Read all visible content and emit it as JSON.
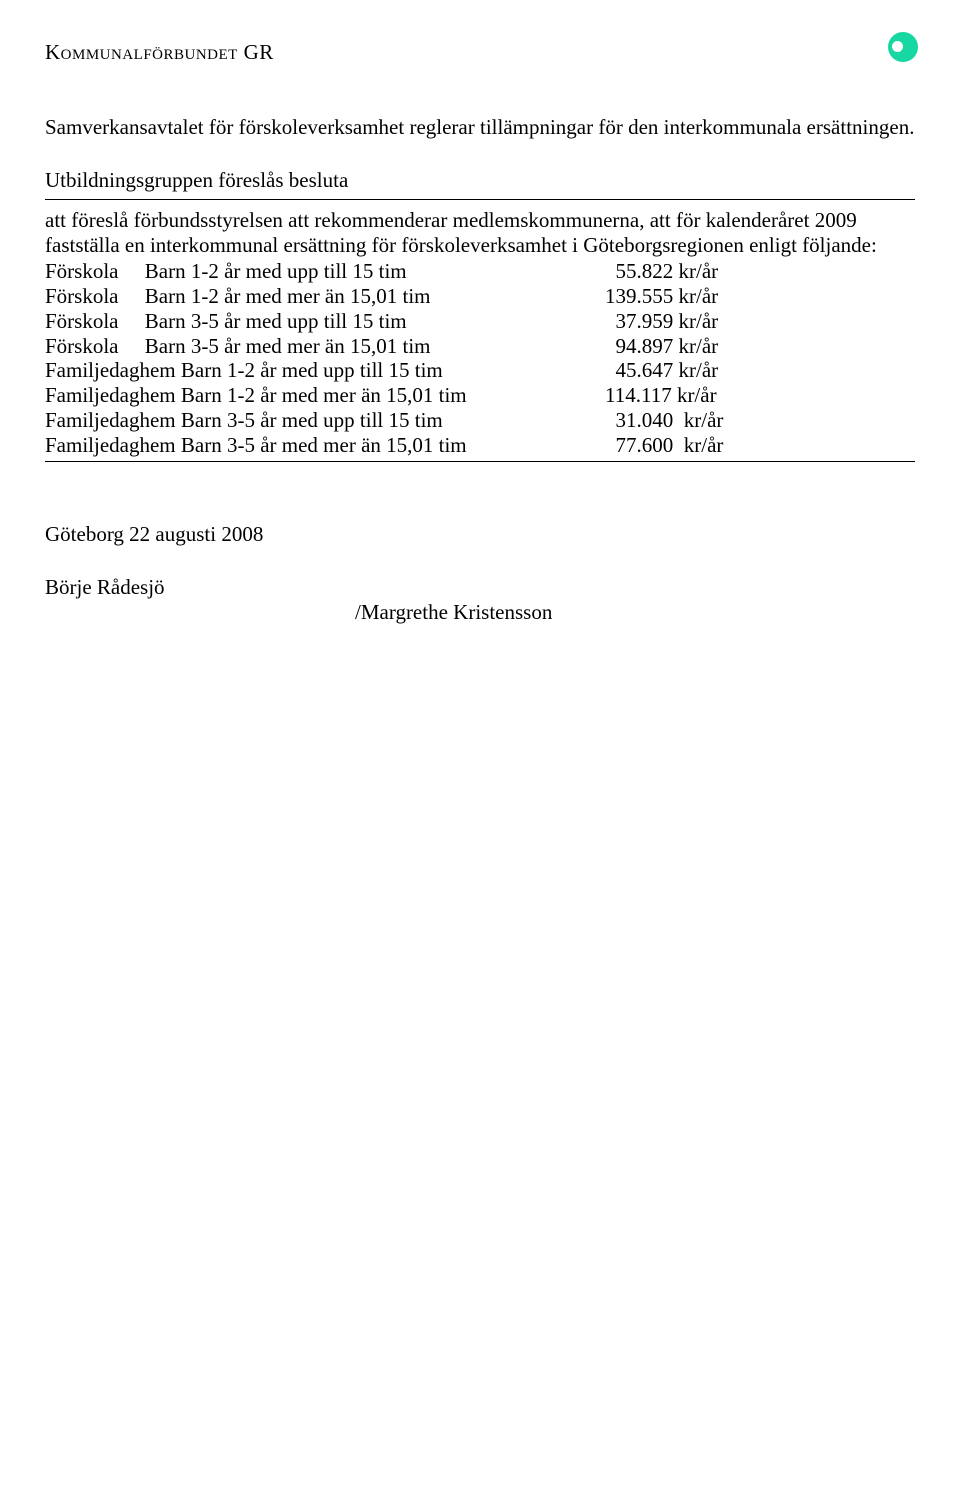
{
  "header": {
    "org_name": "Kommunalförbundet GR"
  },
  "intro_paragraph": "Samverkansavtalet för förskoleverksamhet reglerar tillämpningar för den interkommunala ersättningen.",
  "decision": {
    "title": "Utbildningsgruppen föreslås besluta",
    "body": "att föreslå förbundsstyrelsen att rekommenderar medlemskommunerna, att för kalenderåret 2009 fastställa en interkommunal ersättning för förskoleverksamhet i Göteborgsregionen enligt följande:"
  },
  "rates": [
    {
      "label": "Förskola     Barn 1-2 år med upp till 15 tim",
      "value": "  55.822 kr/år"
    },
    {
      "label": "Förskola     Barn 1-2 år med mer än 15,01 tim",
      "value": "139.555 kr/år"
    },
    {
      "label": "Förskola     Barn 3-5 år med upp till 15 tim",
      "value": "  37.959 kr/år"
    },
    {
      "label": "Förskola     Barn 3-5 år med mer än 15,01 tim",
      "value": "  94.897 kr/år"
    },
    {
      "label": "Familjedaghem Barn 1-2 år med upp till 15 tim",
      "value": "  45.647 kr/år"
    },
    {
      "label": "Familjedaghem Barn 1-2 år med mer än 15,01 tim",
      "value": "114.117 kr/år"
    },
    {
      "label": "Familjedaghem Barn 3-5 år med upp till 15 tim",
      "value": "  31.040  kr/år"
    },
    {
      "label": "Familjedaghem Barn 3-5 år med mer än 15,01 tim",
      "value": "  77.600  kr/år"
    }
  ],
  "footer": {
    "date_place": "Göteborg 22 augusti 2008",
    "signatory_1": "Börje Rådesjö",
    "signatory_2": "/Margrethe Kristensson"
  },
  "colors": {
    "text": "#000000",
    "background": "#ffffff",
    "logo": "#17d8a3"
  }
}
